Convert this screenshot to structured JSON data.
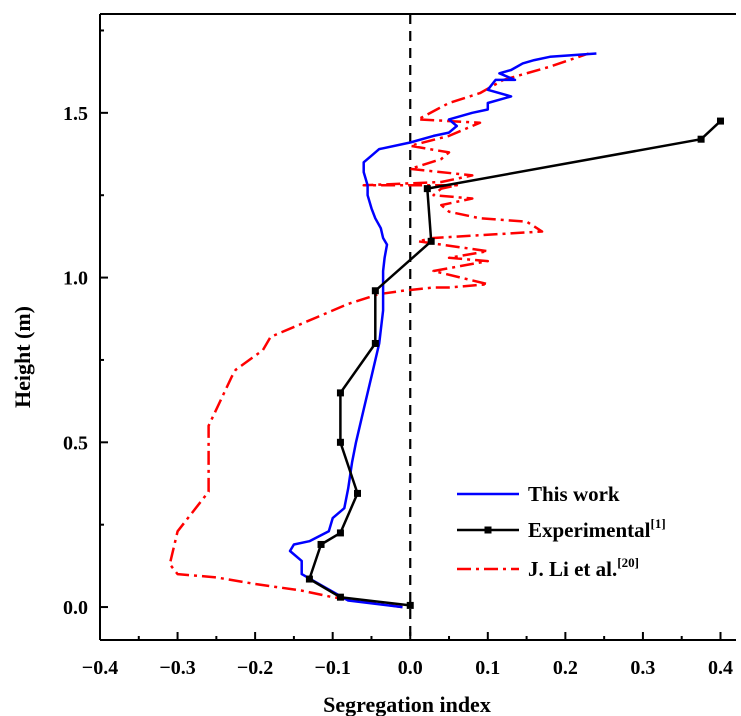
{
  "chart_data": {
    "type": "line",
    "title": "",
    "xlabel": "Segregation index",
    "ylabel": "Height (m)",
    "xlim": [
      -0.4,
      0.42
    ],
    "ylim": [
      -0.1,
      1.8
    ],
    "xticks": [
      -0.4,
      -0.3,
      -0.2,
      -0.1,
      0.0,
      0.1,
      0.2,
      0.3,
      0.4
    ],
    "xtick_labels": [
      "−0.4",
      "−0.3",
      "−0.2",
      "−0.1",
      "0.0",
      "0.1",
      "0.2",
      "0.3",
      "0.4"
    ],
    "yticks": [
      0.0,
      0.5,
      1.0,
      1.5
    ],
    "ytick_labels": [
      "0.0",
      "0.5",
      "1.0",
      "1.5"
    ],
    "grid": false,
    "legend_position": "bottom-right",
    "reference_line": {
      "x": 0.0,
      "style": "dashed"
    },
    "series": [
      {
        "name": "This work",
        "color": "#0000ff",
        "style": "solid",
        "marker": "none",
        "x": [
          -0.01,
          -0.08,
          -0.11,
          -0.14,
          -0.14,
          -0.155,
          -0.15,
          -0.13,
          -0.105,
          -0.1,
          -0.085,
          -0.08,
          -0.075,
          -0.07,
          -0.06,
          -0.05,
          -0.04,
          -0.035,
          -0.035,
          -0.035,
          -0.033,
          -0.03,
          -0.035,
          -0.038,
          -0.045,
          -0.05,
          -0.055,
          -0.055,
          -0.06,
          -0.06,
          -0.05,
          -0.04,
          0.0,
          0.03,
          0.05,
          0.06,
          0.05,
          0.08,
          0.1,
          0.1,
          0.13,
          0.1,
          0.11,
          0.135,
          0.115,
          0.13,
          0.145,
          0.16,
          0.18,
          0.24
        ],
        "y": [
          0.0,
          0.02,
          0.06,
          0.1,
          0.14,
          0.17,
          0.19,
          0.2,
          0.23,
          0.27,
          0.3,
          0.36,
          0.44,
          0.5,
          0.6,
          0.7,
          0.8,
          0.9,
          0.97,
          1.02,
          1.06,
          1.1,
          1.12,
          1.15,
          1.18,
          1.21,
          1.25,
          1.28,
          1.32,
          1.35,
          1.37,
          1.39,
          1.41,
          1.43,
          1.44,
          1.46,
          1.48,
          1.5,
          1.51,
          1.53,
          1.55,
          1.57,
          1.6,
          1.6,
          1.62,
          1.63,
          1.65,
          1.66,
          1.67,
          1.68
        ]
      },
      {
        "name": "Experimental",
        "name_ref": "[1]",
        "color": "#000000",
        "style": "solid",
        "marker": "square",
        "x": [
          0.0,
          -0.09,
          -0.13,
          -0.115,
          -0.09,
          -0.068,
          -0.09,
          -0.09,
          -0.045,
          -0.045,
          0.027,
          0.022,
          0.375,
          0.4
        ],
        "y": [
          0.005,
          0.03,
          0.085,
          0.19,
          0.225,
          0.345,
          0.5,
          0.65,
          0.8,
          0.96,
          1.11,
          1.27,
          1.42,
          1.475
        ]
      },
      {
        "name": "J. Li et al.",
        "name_ref": "[20]",
        "color": "#ff0000",
        "style": "dash-dot",
        "marker": "none",
        "x": [
          -0.01,
          -0.1,
          -0.14,
          -0.2,
          -0.25,
          -0.3,
          -0.31,
          -0.3,
          -0.26,
          -0.26,
          -0.26,
          -0.23,
          -0.225,
          -0.19,
          -0.18,
          -0.12,
          -0.08,
          -0.04,
          -0.01,
          0.03,
          0.05,
          0.1,
          0.03,
          0.1,
          0.05,
          0.1,
          0.01,
          0.03,
          0.17,
          0.15,
          0.09,
          0.05,
          0.04,
          0.08,
          0.03,
          0.04,
          0.06,
          -0.06,
          0.04,
          0.08,
          0.0,
          0.04,
          0.05,
          0.0,
          0.05,
          0.09,
          0.01,
          0.05,
          0.09,
          0.12,
          0.18,
          0.23
        ],
        "y": [
          0.0,
          0.03,
          0.05,
          0.07,
          0.09,
          0.1,
          0.13,
          0.23,
          0.35,
          0.5,
          0.55,
          0.7,
          0.72,
          0.78,
          0.82,
          0.88,
          0.92,
          0.95,
          0.96,
          0.97,
          0.97,
          0.98,
          1.02,
          1.05,
          1.06,
          1.08,
          1.11,
          1.12,
          1.14,
          1.17,
          1.18,
          1.2,
          1.22,
          1.24,
          1.25,
          1.27,
          1.28,
          1.28,
          1.29,
          1.31,
          1.33,
          1.36,
          1.38,
          1.4,
          1.43,
          1.47,
          1.48,
          1.53,
          1.56,
          1.6,
          1.64,
          1.68
        ]
      }
    ]
  }
}
